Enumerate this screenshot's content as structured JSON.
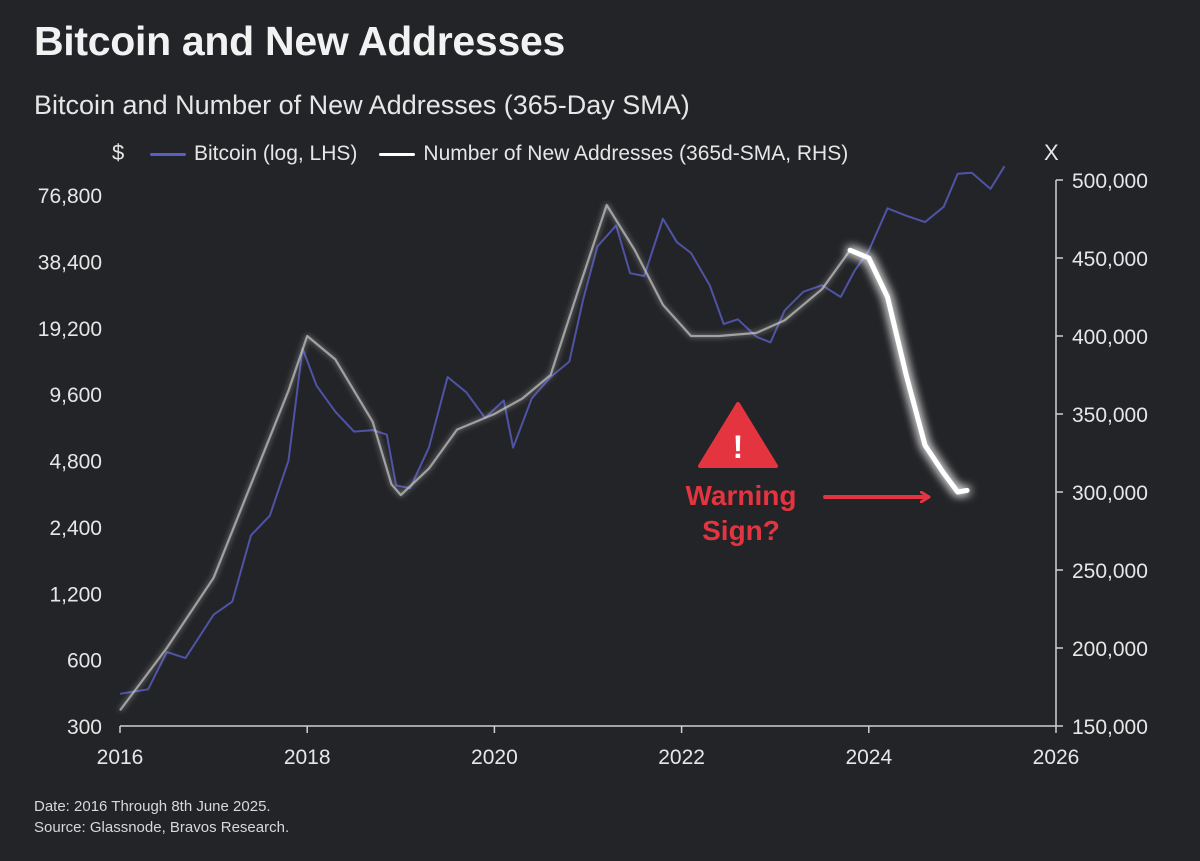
{
  "title": "Bitcoin and New Addresses",
  "subtitle": "Bitcoin and Number of New Addresses (365-Day SMA)",
  "legend": {
    "left_unit": "$",
    "right_unit": "X",
    "items": [
      {
        "label": "Bitcoin (log, LHS)",
        "color": "#5a5fc4"
      },
      {
        "label": "Number of New Addresses (365d-SMA, RHS)",
        "color": "#ffffff"
      }
    ]
  },
  "annotation": {
    "icon": "warning-triangle-icon",
    "icon_glyph": "!",
    "line1": "Warning",
    "line2": "Sign?",
    "color": "#e4343f"
  },
  "footer": {
    "line1": "Date: 2016 Through 8th June 2025.",
    "line2": "Source: Glassnode, Bravos Research."
  },
  "chart_data": {
    "type": "line",
    "x_ticks": [
      "2016",
      "2018",
      "2020",
      "2022",
      "2024",
      "2026"
    ],
    "xlim": [
      2016,
      2026
    ],
    "y_left": {
      "scale": "log2",
      "ticks": [
        "300",
        "600",
        "1,200",
        "2,400",
        "4,800",
        "9,600",
        "19,200",
        "38,400",
        "76,800"
      ],
      "range": [
        300,
        90000
      ]
    },
    "y_right": {
      "scale": "linear",
      "ticks": [
        "150,000",
        "200,000",
        "250,000",
        "300,000",
        "350,000",
        "400,000",
        "450,000",
        "500,000"
      ],
      "range": [
        150000,
        500000
      ]
    },
    "series": [
      {
        "name": "Bitcoin (log, LHS)",
        "axis": "left",
        "color": "#5a5fc4",
        "points": [
          [
            2016.0,
            420
          ],
          [
            2016.3,
            440
          ],
          [
            2016.5,
            650
          ],
          [
            2016.7,
            610
          ],
          [
            2017.0,
            960
          ],
          [
            2017.2,
            1100
          ],
          [
            2017.4,
            2200
          ],
          [
            2017.6,
            2700
          ],
          [
            2017.8,
            4800
          ],
          [
            2017.95,
            15500
          ],
          [
            2018.1,
            10500
          ],
          [
            2018.3,
            8000
          ],
          [
            2018.5,
            6500
          ],
          [
            2018.7,
            6600
          ],
          [
            2018.85,
            6300
          ],
          [
            2018.95,
            3700
          ],
          [
            2019.1,
            3600
          ],
          [
            2019.3,
            5500
          ],
          [
            2019.5,
            11500
          ],
          [
            2019.7,
            9800
          ],
          [
            2019.9,
            7500
          ],
          [
            2020.1,
            9000
          ],
          [
            2020.2,
            5500
          ],
          [
            2020.4,
            9200
          ],
          [
            2020.6,
            11500
          ],
          [
            2020.8,
            13500
          ],
          [
            2020.95,
            26000
          ],
          [
            2021.1,
            45000
          ],
          [
            2021.3,
            56000
          ],
          [
            2021.45,
            34000
          ],
          [
            2021.6,
            33000
          ],
          [
            2021.8,
            60000
          ],
          [
            2021.95,
            47000
          ],
          [
            2022.1,
            42000
          ],
          [
            2022.3,
            30000
          ],
          [
            2022.45,
            20000
          ],
          [
            2022.6,
            21000
          ],
          [
            2022.8,
            17500
          ],
          [
            2022.95,
            16500
          ],
          [
            2023.1,
            23000
          ],
          [
            2023.3,
            28000
          ],
          [
            2023.5,
            30000
          ],
          [
            2023.7,
            26500
          ],
          [
            2023.85,
            35000
          ],
          [
            2024.0,
            43000
          ],
          [
            2024.2,
            67000
          ],
          [
            2024.4,
            62000
          ],
          [
            2024.6,
            58000
          ],
          [
            2024.8,
            68000
          ],
          [
            2024.95,
            96000
          ],
          [
            2025.1,
            97000
          ],
          [
            2025.3,
            82000
          ],
          [
            2025.45,
            104000
          ]
        ]
      },
      {
        "name": "Number of New Addresses (365d-SMA, RHS)",
        "axis": "right",
        "color": "#c8c8c8",
        "points": [
          [
            2016.0,
            160000
          ],
          [
            2016.5,
            200000
          ],
          [
            2017.0,
            245000
          ],
          [
            2017.5,
            320000
          ],
          [
            2017.8,
            365000
          ],
          [
            2018.0,
            400000
          ],
          [
            2018.3,
            385000
          ],
          [
            2018.7,
            345000
          ],
          [
            2018.9,
            305000
          ],
          [
            2019.0,
            298000
          ],
          [
            2019.3,
            315000
          ],
          [
            2019.6,
            340000
          ],
          [
            2020.0,
            350000
          ],
          [
            2020.3,
            360000
          ],
          [
            2020.6,
            375000
          ],
          [
            2020.9,
            430000
          ],
          [
            2021.2,
            484000
          ],
          [
            2021.5,
            455000
          ],
          [
            2021.8,
            420000
          ],
          [
            2022.1,
            400000
          ],
          [
            2022.4,
            400000
          ],
          [
            2022.8,
            402000
          ],
          [
            2023.1,
            410000
          ],
          [
            2023.5,
            430000
          ],
          [
            2023.8,
            455000
          ]
        ]
      },
      {
        "name": "Number of New Addresses (365d-SMA, RHS) - highlighted",
        "axis": "right",
        "color": "#ffffff",
        "points": [
          [
            2023.8,
            455000
          ],
          [
            2024.0,
            450000
          ],
          [
            2024.2,
            425000
          ],
          [
            2024.4,
            375000
          ],
          [
            2024.6,
            330000
          ],
          [
            2024.8,
            312000
          ],
          [
            2024.95,
            300000
          ],
          [
            2025.05,
            301000
          ]
        ]
      }
    ]
  }
}
